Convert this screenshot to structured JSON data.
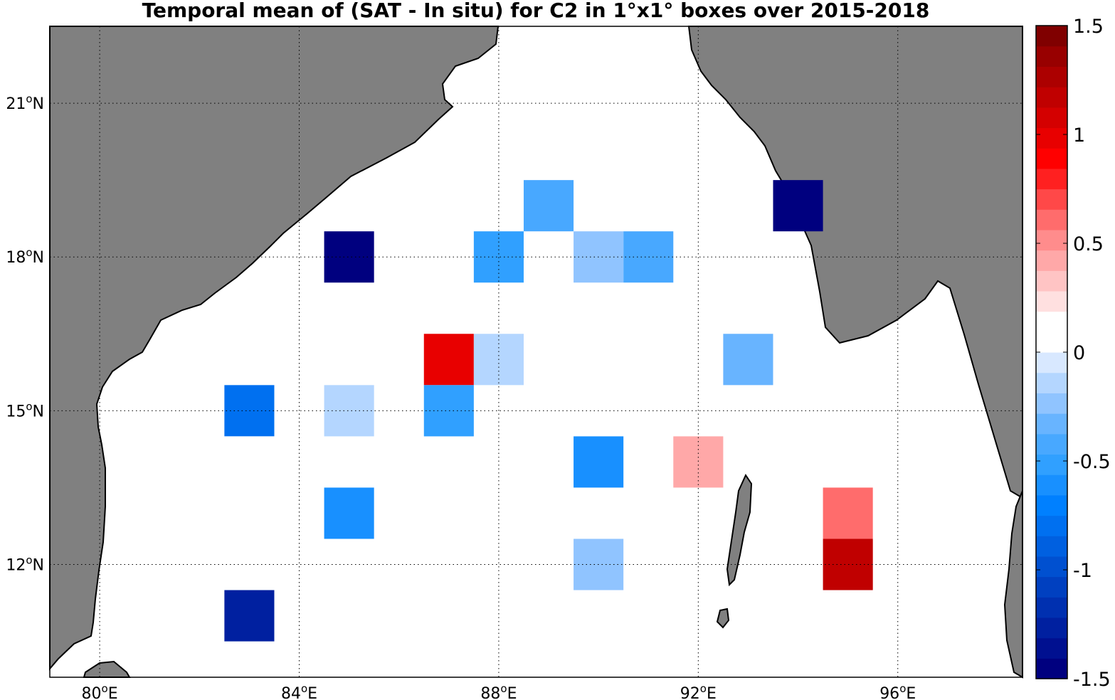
{
  "chart_data": {
    "type": "heatmap",
    "title": "Temporal mean of (SAT - In situ) for C2 in 1°x1° boxes over 2015-2018",
    "lon_range": [
      79,
      98.5
    ],
    "lat_range": [
      9.8,
      22.5
    ],
    "x_ticks": [
      {
        "value": 80,
        "deg": "80",
        "sup": "o",
        "hemi": "E"
      },
      {
        "value": 84,
        "deg": "84",
        "sup": "o",
        "hemi": "E"
      },
      {
        "value": 88,
        "deg": "88",
        "sup": "o",
        "hemi": "E"
      },
      {
        "value": 92,
        "deg": "92",
        "sup": "o",
        "hemi": "E"
      },
      {
        "value": 96,
        "deg": "96",
        "sup": "o",
        "hemi": "E"
      }
    ],
    "y_ticks": [
      {
        "value": 21,
        "deg": "21",
        "sup": "o",
        "hemi": "N"
      },
      {
        "value": 18,
        "deg": "18",
        "sup": "o",
        "hemi": "N"
      },
      {
        "value": 15,
        "deg": "15",
        "sup": "o",
        "hemi": "N"
      },
      {
        "value": 12,
        "deg": "12",
        "sup": "o",
        "hemi": "N"
      }
    ],
    "grid": true,
    "colorbar": {
      "range": [
        -1.5,
        1.5
      ],
      "tick_values": [
        1.5,
        1,
        0.5,
        0,
        -0.5,
        -1,
        -1.5
      ],
      "tick_labels": [
        "1.5",
        "1",
        "0.5",
        "0",
        "-0.5",
        "-1",
        "-1.5"
      ],
      "colors": [
        "#00007f",
        "#001090",
        "#0020a0",
        "#0030b0",
        "#0040c0",
        "#0050d0",
        "#0060e0",
        "#0070f0",
        "#0080ff",
        "#1890ff",
        "#30a0ff",
        "#48a8ff",
        "#68b4ff",
        "#90c4ff",
        "#b4d6ff",
        "#d8e8ff",
        "#ffffff",
        "#ffffff",
        "#ffe0e0",
        "#ffc4c4",
        "#ffa8a8",
        "#ff8c8c",
        "#ff6c6c",
        "#ff4848",
        "#ff2020",
        "#ff0000",
        "#e80000",
        "#d40000",
        "#c00000",
        "#ac0000",
        "#980000",
        "#800000"
      ]
    },
    "cells": [
      {
        "lon": 89,
        "lat": 19,
        "value": -0.45
      },
      {
        "lon": 85,
        "lat": 18,
        "value": -1.45
      },
      {
        "lon": 88,
        "lat": 18,
        "value": -0.5
      },
      {
        "lon": 90,
        "lat": 18,
        "value": -0.25
      },
      {
        "lon": 91,
        "lat": 18,
        "value": -0.45
      },
      {
        "lon": 94,
        "lat": 19,
        "value": -1.45
      },
      {
        "lon": 87,
        "lat": 16,
        "value": 1.0
      },
      {
        "lon": 88,
        "lat": 16,
        "value": -0.1
      },
      {
        "lon": 92,
        "lat": 16,
        "value": 0.12
      },
      {
        "lon": 93,
        "lat": 16,
        "value": -0.3
      },
      {
        "lon": 83,
        "lat": 15,
        "value": -0.8
      },
      {
        "lon": 85,
        "lat": 15,
        "value": -0.1
      },
      {
        "lon": 87,
        "lat": 15,
        "value": -0.5
      },
      {
        "lon": 83,
        "lat": 14,
        "value": 0.12
      },
      {
        "lon": 90,
        "lat": 14,
        "value": -0.6
      },
      {
        "lon": 92,
        "lat": 14,
        "value": 0.45
      },
      {
        "lon": 85,
        "lat": 13,
        "value": -0.6
      },
      {
        "lon": 95,
        "lat": 13,
        "value": 0.6
      },
      {
        "lon": 90,
        "lat": 12,
        "value": -0.25
      },
      {
        "lon": 95,
        "lat": 12,
        "value": 1.2
      },
      {
        "lon": 83,
        "lat": 11,
        "value": -1.25
      }
    ],
    "land_color": "#808080",
    "ocean_color": "#ffffff"
  }
}
